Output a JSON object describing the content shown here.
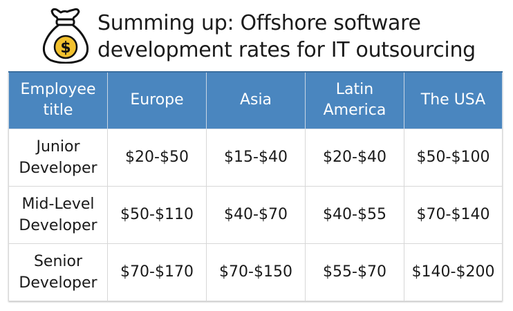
{
  "header": {
    "icon": "money-bag-icon",
    "title_line1": "Summing up: Offshore software",
    "title_line2": "development rates for IT outsourcing"
  },
  "colors": {
    "header_blue": "#4a86bf",
    "icon_gold": "#f2c12e",
    "icon_outline": "#111111"
  },
  "table": {
    "columns": [
      {
        "line1": "Employee",
        "line2": "title"
      },
      {
        "line1": "Europe",
        "line2": ""
      },
      {
        "line1": "Asia",
        "line2": ""
      },
      {
        "line1": "Latin",
        "line2": "America"
      },
      {
        "line1": "The USA",
        "line2": ""
      }
    ],
    "rows": [
      {
        "label_line1": "Junior",
        "label_line2": "Developer",
        "europe": "$20-$50",
        "asia": "$15-$40",
        "latin_america": "$20-$40",
        "usa": "$50-$100"
      },
      {
        "label_line1": "Mid-Level",
        "label_line2": "Developer",
        "europe": "$50-$110",
        "asia": "$40-$70",
        "latin_america": "$40-$55",
        "usa": "$70-$140"
      },
      {
        "label_line1": "Senior",
        "label_line2": "Developer",
        "europe": "$70-$170",
        "asia": "$70-$150",
        "latin_america": "$55-$70",
        "usa": "$140-$200"
      }
    ]
  }
}
